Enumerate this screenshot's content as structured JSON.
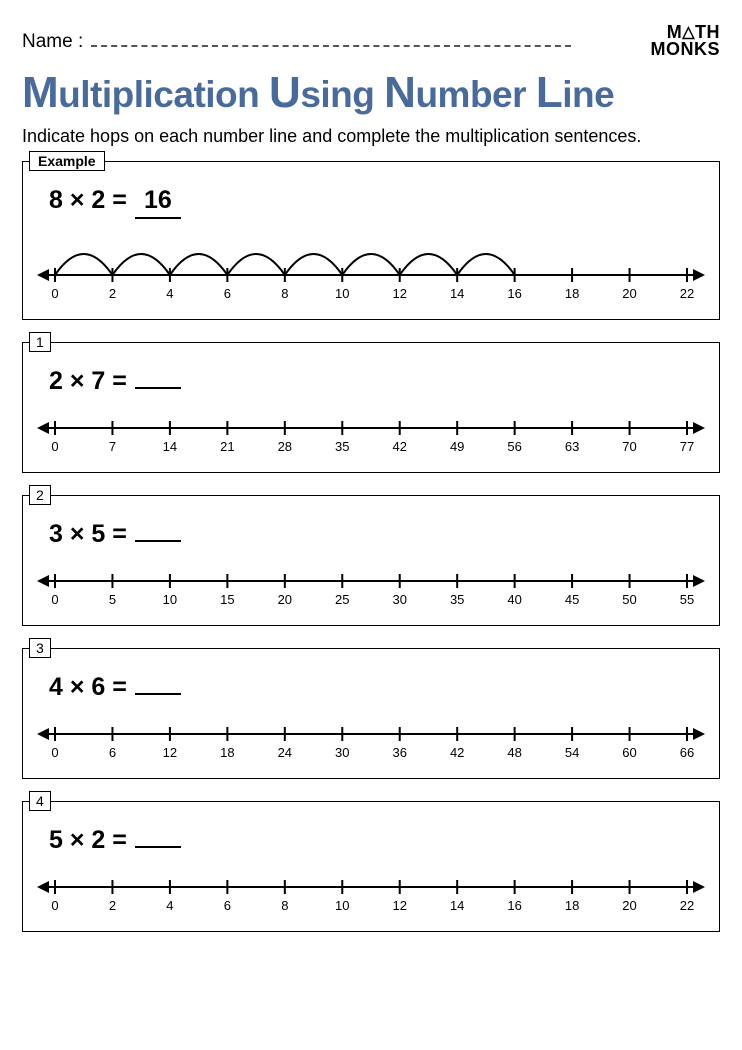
{
  "header": {
    "name_label": "Name :",
    "logo_line1": "M",
    "logo_line1b": "TH",
    "logo_line2": "MONKS"
  },
  "title_parts": [
    "M",
    "ultiplication ",
    "U",
    "sing ",
    "N",
    "umber ",
    "L",
    "ine"
  ],
  "instruction": "Indicate hops on each number line and complete the multiplication sentences.",
  "colors": {
    "title": "#4a6b9a",
    "line": "#000000",
    "text": "#000000",
    "background": "#ffffff"
  },
  "numberline_style": {
    "stroke_width": 2,
    "tick_height": 14,
    "label_fontsize": 13,
    "arrow_size": 10
  },
  "problems": [
    {
      "badge": "Example",
      "is_example": true,
      "equation": "8 × 2 =",
      "answer": "16",
      "ticks": [
        0,
        2,
        4,
        6,
        8,
        10,
        12,
        14,
        16,
        18,
        20,
        22
      ],
      "hops": 8,
      "hop_step": 2
    },
    {
      "badge": "1",
      "is_example": false,
      "equation": "2 × 7 =",
      "answer": "",
      "ticks": [
        0,
        7,
        14,
        21,
        28,
        35,
        42,
        49,
        56,
        63,
        70,
        77
      ],
      "hops": 0,
      "hop_step": 7
    },
    {
      "badge": "2",
      "is_example": false,
      "equation": "3 × 5 =",
      "answer": "",
      "ticks": [
        0,
        5,
        10,
        15,
        20,
        25,
        30,
        35,
        40,
        45,
        50,
        55
      ],
      "hops": 0,
      "hop_step": 5
    },
    {
      "badge": "3",
      "is_example": false,
      "equation": "4 × 6 =",
      "answer": "",
      "ticks": [
        0,
        6,
        12,
        18,
        24,
        30,
        36,
        42,
        48,
        54,
        60,
        66
      ],
      "hops": 0,
      "hop_step": 6
    },
    {
      "badge": "4",
      "is_example": false,
      "equation": "5 × 2 =",
      "answer": "",
      "ticks": [
        0,
        2,
        4,
        6,
        8,
        10,
        12,
        14,
        16,
        18,
        20,
        22
      ],
      "hops": 0,
      "hop_step": 2
    }
  ]
}
